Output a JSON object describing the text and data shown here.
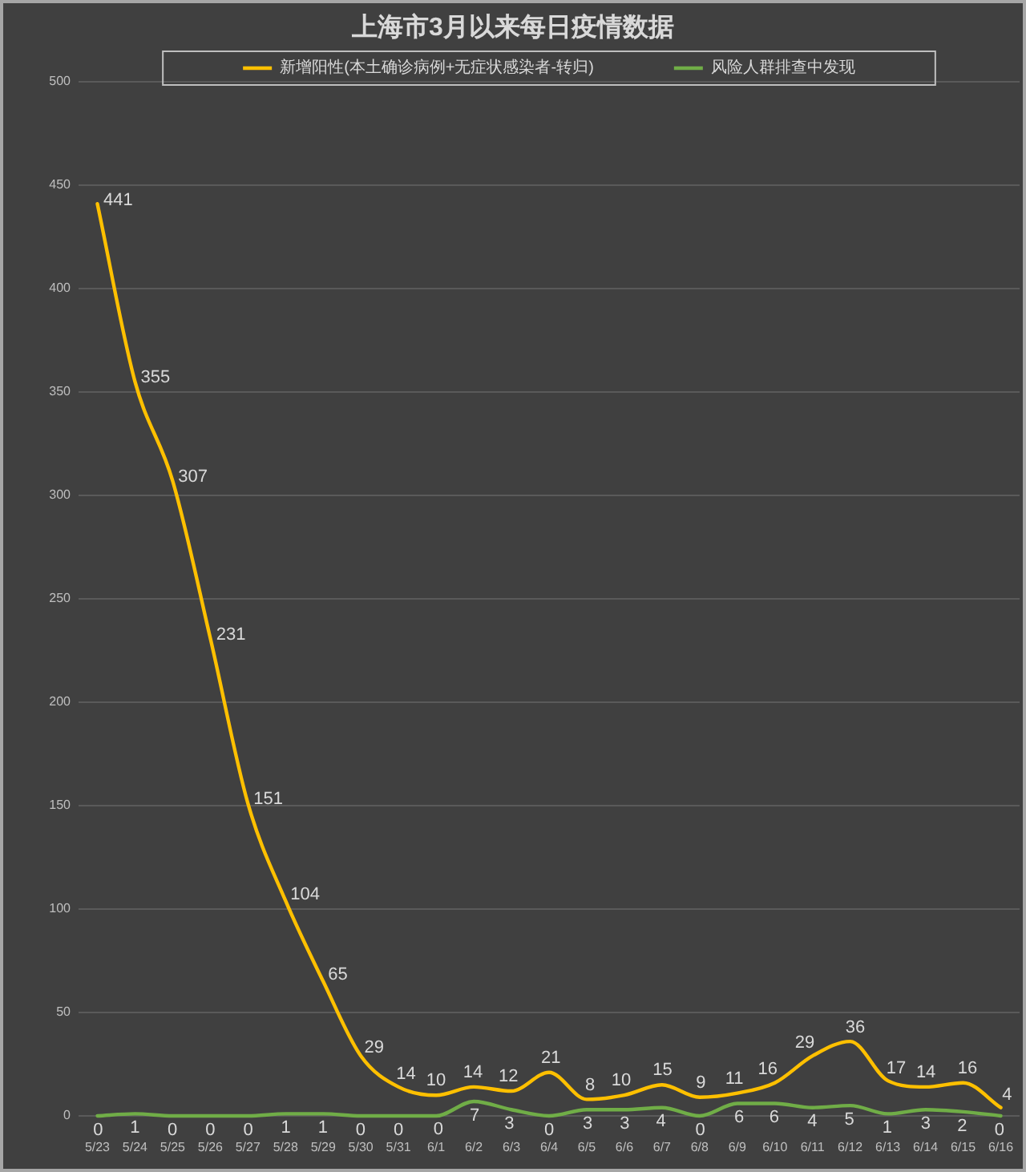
{
  "chart_data": {
    "type": "line",
    "title": "上海市3月以来每日疫情数据",
    "categories": [
      "5/23",
      "5/24",
      "5/25",
      "5/26",
      "5/27",
      "5/28",
      "5/29",
      "5/30",
      "5/31",
      "6/1",
      "6/2",
      "6/3",
      "6/4",
      "6/5",
      "6/6",
      "6/7",
      "6/8",
      "6/9",
      "6/10",
      "6/11",
      "6/12",
      "6/13",
      "6/14",
      "6/15",
      "6/16"
    ],
    "series": [
      {
        "name": "新增阳性(本土确诊病例+无症状感染者-转归)",
        "color": "#ffc000",
        "values": [
          441,
          355,
          307,
          231,
          151,
          104,
          65,
          29,
          14,
          10,
          14,
          12,
          21,
          8,
          10,
          15,
          9,
          11,
          16,
          29,
          36,
          17,
          14,
          16,
          4
        ]
      },
      {
        "name": "风险人群排查中发现",
        "color": "#70ad47",
        "values": [
          0,
          1,
          0,
          0,
          0,
          1,
          1,
          0,
          0,
          0,
          7,
          3,
          0,
          3,
          3,
          4,
          0,
          6,
          6,
          4,
          5,
          1,
          3,
          2,
          0
        ]
      }
    ],
    "ylim": [
      0,
      500
    ],
    "yticks": [
      0,
      50,
      100,
      150,
      200,
      250,
      300,
      350,
      400,
      450,
      500
    ],
    "grid": "y",
    "legend": "top",
    "data_labels": true
  }
}
